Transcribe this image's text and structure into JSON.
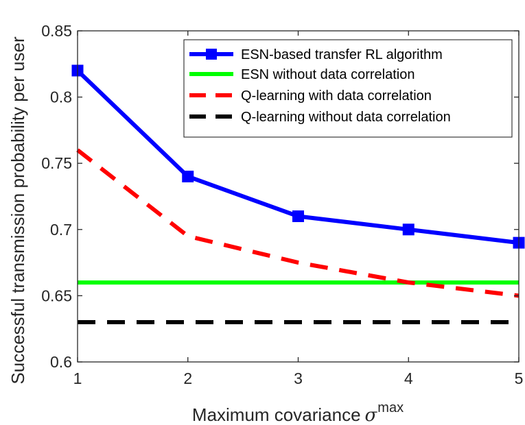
{
  "chart_data": {
    "type": "line",
    "xlabel": "Maximum covariance",
    "xlabel_symbol": "σ",
    "xlabel_superscript": "max",
    "ylabel": "Successful transmission probability per user",
    "x": [
      1,
      2,
      3,
      4,
      5
    ],
    "x_ticks": [
      "1",
      "2",
      "3",
      "4",
      "5"
    ],
    "y_ticks": [
      "0.6",
      "0.65",
      "0.7",
      "0.75",
      "0.8",
      "0.85"
    ],
    "xlim": [
      1,
      5
    ],
    "ylim": [
      0.6,
      0.85
    ],
    "grid": false,
    "legend_placement": "top-right",
    "series": [
      {
        "name": "ESN-based transfer RL algorithm",
        "values": [
          0.82,
          0.74,
          0.71,
          0.7,
          0.69
        ],
        "color": "#0000ff",
        "style": "solid",
        "marker": "square"
      },
      {
        "name": "ESN without data correlation",
        "values": [
          0.66,
          0.66,
          0.66,
          0.66,
          0.66
        ],
        "color": "#00ff00",
        "style": "solid",
        "marker": "none"
      },
      {
        "name": "Q-learning with data correlation",
        "values": [
          0.76,
          0.695,
          0.675,
          0.66,
          0.65
        ],
        "color": "#ff0000",
        "style": "dashed",
        "marker": "none"
      },
      {
        "name": "Q-learning without data correlation",
        "values": [
          0.63,
          0.63,
          0.63,
          0.63,
          0.63
        ],
        "color": "#000000",
        "style": "dashed",
        "marker": "none"
      }
    ]
  }
}
